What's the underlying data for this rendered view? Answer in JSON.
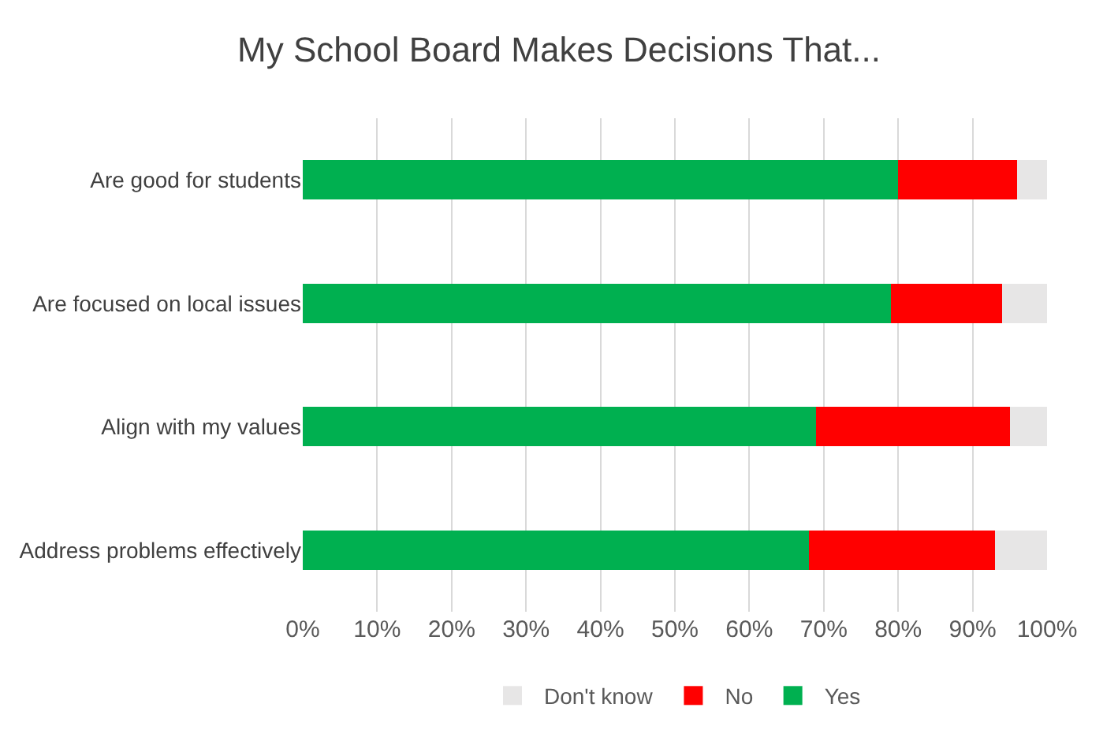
{
  "chart_data": {
    "type": "bar",
    "orientation": "horizontal",
    "stacked": true,
    "title": "My School Board Makes Decisions That...",
    "categories": [
      "Are good for students",
      "Are focused on local issues",
      "Align with my values",
      "Address problems effectively"
    ],
    "series": [
      {
        "name": "Yes",
        "color": "#00b050",
        "values": [
          80,
          79,
          69,
          68
        ]
      },
      {
        "name": "No",
        "color": "#ff0000",
        "values": [
          16,
          15,
          26,
          25
        ]
      },
      {
        "name": "Don't know",
        "color": "#e7e6e6",
        "values": [
          4,
          6,
          5,
          7
        ]
      }
    ],
    "xlim": [
      0,
      100
    ],
    "xticks": [
      {
        "value": 0,
        "label": "0%"
      },
      {
        "value": 10,
        "label": "10%"
      },
      {
        "value": 20,
        "label": "20%"
      },
      {
        "value": 30,
        "label": "30%"
      },
      {
        "value": 40,
        "label": "40%"
      },
      {
        "value": 50,
        "label": "50%"
      },
      {
        "value": 60,
        "label": "60%"
      },
      {
        "value": 70,
        "label": "70%"
      },
      {
        "value": 80,
        "label": "80%"
      },
      {
        "value": 90,
        "label": "90%"
      },
      {
        "value": 100,
        "label": "100%"
      }
    ],
    "grid": "x",
    "legend": "bottom"
  }
}
